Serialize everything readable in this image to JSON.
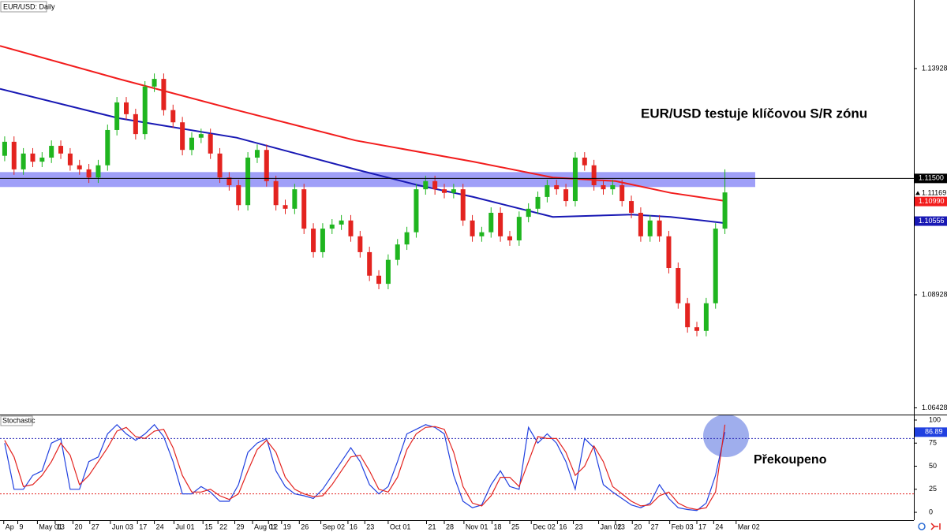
{
  "chart_data": [
    {
      "type": "candlestick",
      "title": "EUR/USD: Daily",
      "annotation": "EUR/USD testuje klíčovou S/R zónu",
      "xlim": [
        -0.5,
        97.2
      ],
      "ylim": [
        1.06297,
        1.15444
      ],
      "yticks": [
        1.06428,
        1.08928,
        1.13928
      ],
      "up_color": "#1fb51f",
      "down_color": "#e3231f",
      "open": [
        1.12,
        1.1231,
        1.117,
        1.1205,
        1.1187,
        1.1196,
        1.1222,
        1.1205,
        1.1179,
        1.117,
        1.1152,
        1.1179,
        1.1257,
        1.1318,
        1.1292,
        1.1248,
        1.1353,
        1.137,
        1.1301,
        1.1274,
        1.1213,
        1.124,
        1.1248,
        1.1205,
        1.1152,
        1.1135,
        1.1091,
        1.1196,
        1.1213,
        1.1144,
        1.1091,
        1.1083,
        1.1126,
        1.1039,
        1.0987,
        1.1039,
        1.1048,
        1.1057,
        1.1022,
        1.0987,
        1.0935,
        1.0917,
        1.097,
        1.1004,
        1.1031,
        1.1126,
        1.1144,
        1.1126,
        1.1118,
        1.1126,
        1.1057,
        1.1022,
        1.1031,
        1.1074,
        1.1022,
        1.1013,
        1.1065,
        1.1083,
        1.1109,
        1.1135,
        1.1126,
        1.11,
        1.1196,
        1.1179,
        1.1135,
        1.1126,
        1.1135,
        1.11,
        1.1074,
        1.1022,
        1.1057,
        1.1022,
        1.0952,
        1.0874,
        1.0821,
        1.0813,
        1.0874,
        1.1039
      ],
      "high": [
        1.1243,
        1.1243,
        1.1217,
        1.1217,
        1.1208,
        1.1234,
        1.1234,
        1.1217,
        1.1191,
        1.1182,
        1.1191,
        1.1269,
        1.133,
        1.133,
        1.1304,
        1.1365,
        1.1382,
        1.1382,
        1.1313,
        1.1286,
        1.1252,
        1.126,
        1.126,
        1.1217,
        1.1164,
        1.1147,
        1.1208,
        1.1225,
        1.1225,
        1.1156,
        1.1103,
        1.1138,
        1.1138,
        1.1051,
        1.1051,
        1.106,
        1.1069,
        1.1069,
        1.1034,
        1.0999,
        1.0947,
        1.0982,
        1.1016,
        1.1043,
        1.1138,
        1.1156,
        1.1156,
        1.1138,
        1.1138,
        1.1138,
        1.1069,
        1.1043,
        1.1086,
        1.1086,
        1.1034,
        1.1077,
        1.1095,
        1.1121,
        1.1147,
        1.1147,
        1.1138,
        1.1208,
        1.1208,
        1.1191,
        1.1147,
        1.1147,
        1.1147,
        1.1112,
        1.1086,
        1.1069,
        1.1069,
        1.1034,
        1.0964,
        1.0886,
        1.0833,
        1.0886,
        1.1051,
        1.117
      ],
      "low": [
        1.1188,
        1.1158,
        1.1158,
        1.1175,
        1.1175,
        1.1184,
        1.1193,
        1.1167,
        1.1158,
        1.114,
        1.114,
        1.1167,
        1.1245,
        1.128,
        1.1236,
        1.1236,
        1.1341,
        1.1289,
        1.1262,
        1.1201,
        1.1201,
        1.1228,
        1.1193,
        1.114,
        1.1123,
        1.1079,
        1.1079,
        1.1184,
        1.1132,
        1.1079,
        1.1071,
        1.1071,
        1.1027,
        1.0975,
        1.0975,
        1.1027,
        1.1036,
        1.101,
        1.0975,
        1.0923,
        1.0905,
        1.0905,
        1.0958,
        1.0992,
        1.1019,
        1.1114,
        1.1114,
        1.1106,
        1.1106,
        1.1045,
        1.101,
        1.101,
        1.1019,
        1.101,
        1.1001,
        1.1001,
        1.1053,
        1.1071,
        1.1097,
        1.1114,
        1.1088,
        1.1088,
        1.1167,
        1.1123,
        1.1114,
        1.1114,
        1.1088,
        1.1062,
        1.101,
        1.101,
        1.101,
        1.094,
        1.0862,
        1.0809,
        1.0801,
        1.0801,
        1.0862,
        1.1027
      ],
      "close": [
        1.1231,
        1.117,
        1.1205,
        1.1187,
        1.1196,
        1.1222,
        1.1205,
        1.1179,
        1.117,
        1.1152,
        1.1179,
        1.1257,
        1.1318,
        1.1292,
        1.1248,
        1.1353,
        1.137,
        1.1301,
        1.1274,
        1.1213,
        1.124,
        1.1248,
        1.1205,
        1.1152,
        1.1135,
        1.1091,
        1.1196,
        1.1213,
        1.1144,
        1.1091,
        1.1083,
        1.1126,
        1.1039,
        1.0987,
        1.1039,
        1.1048,
        1.1057,
        1.1022,
        1.0987,
        1.0935,
        1.0917,
        1.097,
        1.1004,
        1.1031,
        1.1126,
        1.1144,
        1.1126,
        1.1118,
        1.1126,
        1.1057,
        1.1022,
        1.1031,
        1.1074,
        1.1022,
        1.1013,
        1.1065,
        1.1083,
        1.1109,
        1.1135,
        1.1126,
        1.11,
        1.1196,
        1.1179,
        1.1135,
        1.1126,
        1.1135,
        1.11,
        1.1074,
        1.1022,
        1.1057,
        1.1022,
        1.0952,
        1.0874,
        1.0821,
        1.0813,
        1.0874,
        1.1039,
        1.1119
      ],
      "zone": [
        1.1131,
        1.1164
      ],
      "zone_color": "#7f7ff5",
      "lines": [
        {
          "color": "#f21c1c",
          "x": [
            -0.5,
            12.2,
            24.8,
            37.5,
            50.1,
            58.6,
            65.3,
            71.2,
            77.1
          ],
          "values": [
            1.1443,
            1.137,
            1.1301,
            1.1234,
            1.1187,
            1.1152,
            1.1144,
            1.1118,
            1.11
          ]
        },
        {
          "color": "#1818b4",
          "x": [
            -0.5,
            12.2,
            24.8,
            37.5,
            44.2,
            50.1,
            58.6,
            67.0,
            71.2,
            77.1
          ],
          "values": [
            1.1348,
            1.1283,
            1.124,
            1.117,
            1.1135,
            1.1109,
            1.1065,
            1.107,
            1.1065,
            1.1051
          ]
        }
      ],
      "markers": [
        {
          "value": 1.115,
          "label": "1.11500",
          "color": "#000000",
          "line": true
        },
        {
          "value": 1.11169,
          "label": "1.11169"
        },
        {
          "value": 1.1099,
          "label": "1.10990",
          "color": "#f21c1c"
        },
        {
          "value": 1.10556,
          "label": "1.10556",
          "color": "#1818b4"
        }
      ]
    },
    {
      "type": "line",
      "title": "Stochastic",
      "annotation": "Překoupeno",
      "xlim": [
        -0.5,
        97.2
      ],
      "ylim": [
        -8.5,
        105.1
      ],
      "yticks": [
        0,
        25,
        50,
        75,
        100
      ],
      "levels": [
        {
          "value": 80,
          "color": "#2b2bb8"
        },
        {
          "value": 20,
          "color": "#e3231f"
        }
      ],
      "series": [
        {
          "color": "#2040e0",
          "values": [
            75,
            25,
            25,
            40,
            45,
            75,
            80,
            25,
            25,
            55,
            60,
            85,
            95,
            85,
            78,
            85,
            95,
            82,
            55,
            20,
            20,
            28,
            22,
            12,
            12,
            30,
            65,
            75,
            80,
            45,
            28,
            20,
            18,
            15,
            25,
            40,
            55,
            70,
            55,
            30,
            20,
            28,
            55,
            85,
            90,
            95,
            92,
            85,
            40,
            12,
            5,
            8,
            30,
            45,
            28,
            25,
            92,
            75,
            85,
            75,
            55,
            25,
            80,
            70,
            30,
            22,
            15,
            8,
            5,
            10,
            30,
            15,
            5,
            3,
            2,
            10,
            40,
            86.89
          ]
        },
        {
          "color": "#e3231f",
          "values": [
            78,
            60,
            28,
            30,
            40,
            55,
            75,
            62,
            30,
            40,
            55,
            70,
            88,
            92,
            82,
            80,
            88,
            90,
            70,
            40,
            22,
            22,
            25,
            18,
            14,
            20,
            45,
            68,
            78,
            65,
            38,
            25,
            20,
            17,
            18,
            30,
            45,
            60,
            62,
            45,
            25,
            22,
            38,
            68,
            85,
            92,
            93,
            90,
            65,
            28,
            10,
            7,
            18,
            38,
            38,
            28,
            55,
            82,
            80,
            80,
            65,
            40,
            50,
            72,
            55,
            28,
            20,
            12,
            7,
            8,
            18,
            22,
            10,
            5,
            3,
            5,
            22,
            95
          ]
        }
      ],
      "xticks": [
        {
          "value": -0.1,
          "label": "Ap"
        },
        {
          "value": 1.4,
          "label": "9"
        },
        {
          "value": 3.5,
          "label": "May 01"
        },
        {
          "value": 5.4,
          "label": "13"
        },
        {
          "value": 7.3,
          "label": "20"
        },
        {
          "value": 9.1,
          "label": "27"
        },
        {
          "value": 11.3,
          "label": "Jun 03"
        },
        {
          "value": 14.2,
          "label": "17"
        },
        {
          "value": 16.0,
          "label": "24"
        },
        {
          "value": 18.1,
          "label": "Jul 01"
        },
        {
          "value": 21.2,
          "label": "15"
        },
        {
          "value": 22.8,
          "label": "22"
        },
        {
          "value": 24.6,
          "label": "29"
        },
        {
          "value": 26.5,
          "label": "Aug 01"
        },
        {
          "value": 28.2,
          "label": "12"
        },
        {
          "value": 29.6,
          "label": "19"
        },
        {
          "value": 31.5,
          "label": "26"
        },
        {
          "value": 33.8,
          "label": "Sep 02"
        },
        {
          "value": 36.7,
          "label": "16"
        },
        {
          "value": 38.5,
          "label": "23"
        },
        {
          "value": 41.0,
          "label": "Oct 01"
        },
        {
          "value": 45.1,
          "label": "21"
        },
        {
          "value": 47.0,
          "label": "28"
        },
        {
          "value": 49.1,
          "label": "Nov 01"
        },
        {
          "value": 52.1,
          "label": "18"
        },
        {
          "value": 54.0,
          "label": "25"
        },
        {
          "value": 56.3,
          "label": "Dec 02"
        },
        {
          "value": 59.1,
          "label": "16"
        },
        {
          "value": 60.8,
          "label": "23"
        },
        {
          "value": 63.5,
          "label": "Jan 02"
        },
        {
          "value": 65.3,
          "label": "13"
        },
        {
          "value": 67.1,
          "label": "20"
        },
        {
          "value": 68.9,
          "label": "27"
        },
        {
          "value": 71.1,
          "label": "Feb 03"
        },
        {
          "value": 74.0,
          "label": "17"
        },
        {
          "value": 75.8,
          "label": "24"
        },
        {
          "value": 78.2,
          "label": "Mar 02"
        }
      ]
    }
  ]
}
